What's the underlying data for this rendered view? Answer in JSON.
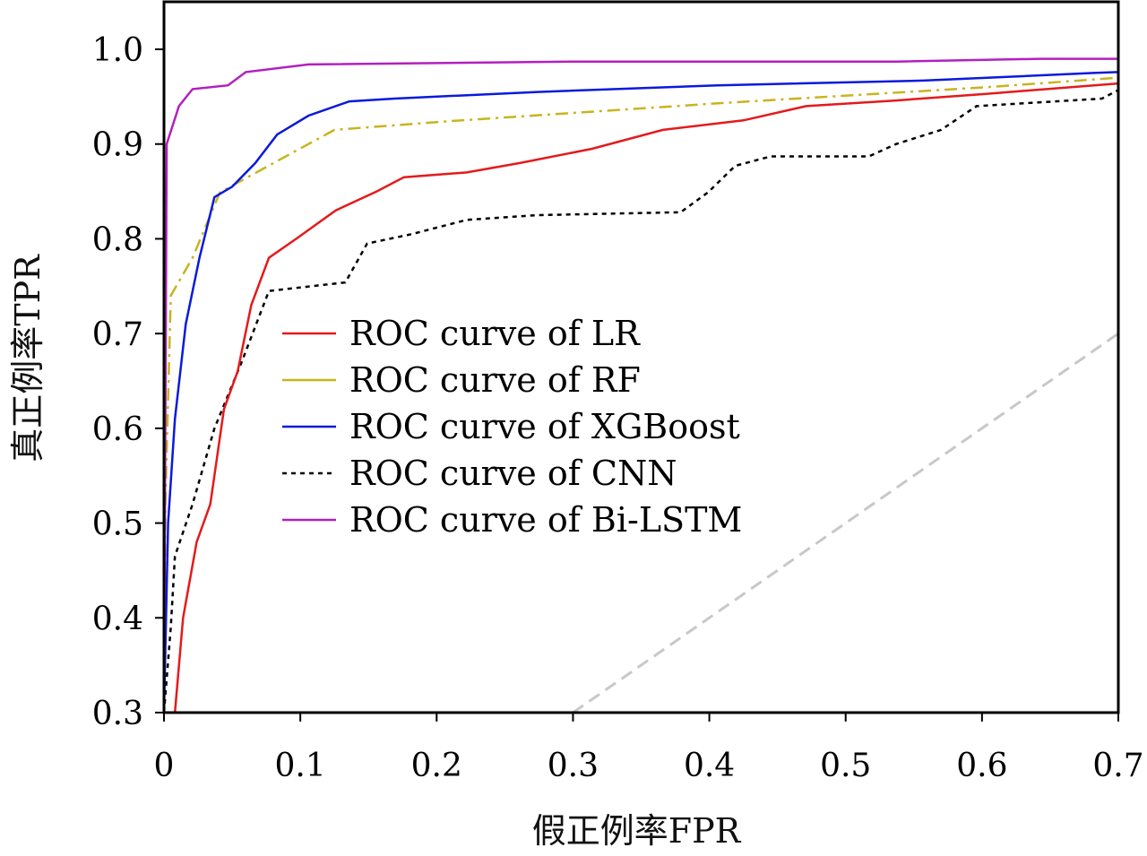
{
  "chart_data": {
    "type": "line",
    "title": "",
    "xlabel": "假正例率FPR",
    "ylabel": "真正例率TPR",
    "xlim": [
      0,
      0.7
    ],
    "ylim": [
      0.3,
      1.05
    ],
    "grid": false,
    "legend_position": "center",
    "x_ticks": [
      0,
      0.1,
      0.2,
      0.3,
      0.4,
      0.5,
      0.6,
      0.7
    ],
    "x_tick_labels": [
      "0",
      "0.1",
      "0.2",
      "0.3",
      "0.4",
      "0.5",
      "0.6",
      "0.7"
    ],
    "y_ticks": [
      0.3,
      0.4,
      0.5,
      0.6,
      0.7,
      0.8,
      0.9,
      1.0
    ],
    "y_tick_labels": [
      "0.3",
      "0.4",
      "0.5",
      "0.6",
      "0.7",
      "0.8",
      "0.9",
      "1.0"
    ],
    "series": [
      {
        "name": "ROC curve of LR",
        "color": "#e41a1c",
        "style": "solid",
        "x": [
          0.008,
          0.014,
          0.024,
          0.034,
          0.044,
          0.054,
          0.064,
          0.077,
          0.097,
          0.126,
          0.156,
          0.176,
          0.222,
          0.261,
          0.314,
          0.366,
          0.425,
          0.471,
          0.537,
          0.603,
          0.7
        ],
        "y": [
          0.3,
          0.4,
          0.48,
          0.52,
          0.62,
          0.66,
          0.73,
          0.78,
          0.8,
          0.83,
          0.85,
          0.865,
          0.87,
          0.88,
          0.895,
          0.915,
          0.925,
          0.94,
          0.946,
          0.953,
          0.964
        ]
      },
      {
        "name": "ROC curve of RF",
        "color": "#c8b41e",
        "style": "dashdot",
        "x": [
          0,
          0.001,
          0.005,
          0.021,
          0.041,
          0.125,
          0.208,
          0.406,
          0.603,
          0.7
        ],
        "y": [
          0.3,
          0.52,
          0.74,
          0.78,
          0.849,
          0.915,
          0.924,
          0.943,
          0.96,
          0.97
        ]
      },
      {
        "name": "ROC curve of XGBoost",
        "color": "#0a1adc",
        "style": "solid",
        "x": [
          0,
          0.003,
          0.008,
          0.016,
          0.026,
          0.037,
          0.05,
          0.067,
          0.083,
          0.106,
          0.136,
          0.169,
          0.274,
          0.406,
          0.557,
          0.682,
          0.7
        ],
        "y": [
          0.3,
          0.5,
          0.61,
          0.71,
          0.78,
          0.844,
          0.855,
          0.88,
          0.91,
          0.93,
          0.945,
          0.948,
          0.955,
          0.962,
          0.967,
          0.975,
          0.976
        ]
      },
      {
        "name": "ROC curve of CNN",
        "color": "#000000",
        "style": "dotted",
        "x": [
          0,
          0.005,
          0.008,
          0.021,
          0.037,
          0.057,
          0.077,
          0.133,
          0.149,
          0.182,
          0.222,
          0.274,
          0.379,
          0.399,
          0.419,
          0.445,
          0.517,
          0.537,
          0.57,
          0.596,
          0.688,
          0.7
        ],
        "y": [
          0.3,
          0.39,
          0.465,
          0.52,
          0.6,
          0.67,
          0.745,
          0.754,
          0.795,
          0.805,
          0.82,
          0.825,
          0.828,
          0.849,
          0.877,
          0.887,
          0.887,
          0.9,
          0.915,
          0.94,
          0.948,
          0.957
        ]
      },
      {
        "name": "ROC curve of Bi-LSTM",
        "color": "#b31fc0",
        "style": "solid",
        "x": [
          0,
          0.002,
          0.011,
          0.021,
          0.047,
          0.06,
          0.106,
          0.3,
          0.537,
          0.643,
          0.7
        ],
        "y": [
          0.3,
          0.9,
          0.94,
          0.958,
          0.962,
          0.976,
          0.984,
          0.987,
          0.987,
          0.99,
          0.99
        ]
      },
      {
        "name": "chance",
        "color": "#c8c8c8",
        "style": "dashed",
        "in_legend": false,
        "x": [
          0.3,
          0.7
        ],
        "y": [
          0.3,
          0.7
        ]
      }
    ]
  }
}
